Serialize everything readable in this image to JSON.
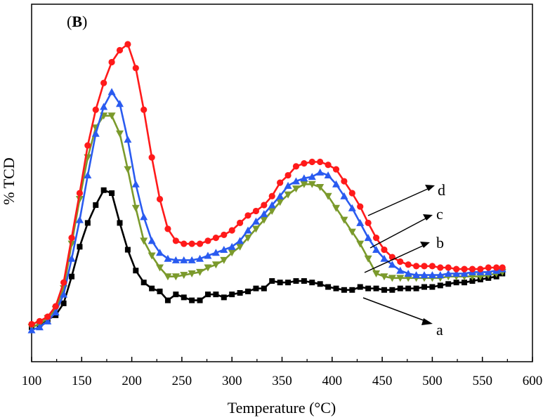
{
  "panel_label": {
    "open": "(",
    "letter": "B",
    "close": ")"
  },
  "chart_data": {
    "type": "line",
    "title": "",
    "xlabel": "Temperature (°C)",
    "ylabel": "% TCD",
    "xlim": [
      100,
      600
    ],
    "ylim": [
      0,
      100
    ],
    "x_ticks": [
      "100",
      "150",
      "200",
      "250",
      "300",
      "350",
      "400",
      "450",
      "500",
      "550",
      "600"
    ],
    "y_ticks": [],
    "legend": "none (curves labeled a-d with arrows)",
    "series": [
      {
        "name": "a",
        "color": "#000000",
        "marker": "square",
        "x": [
          100,
          108,
          116,
          124,
          132,
          140,
          148,
          156,
          164,
          172,
          180,
          188,
          196,
          204,
          212,
          220,
          228,
          236,
          244,
          252,
          260,
          268,
          276,
          284,
          292,
          300,
          308,
          316,
          324,
          332,
          340,
          348,
          356,
          364,
          372,
          380,
          388,
          396,
          404,
          412,
          420,
          428,
          436,
          444,
          452,
          460,
          468,
          476,
          484,
          492,
          500,
          508,
          516,
          524,
          532,
          540,
          548,
          556,
          564,
          570
        ],
        "y": [
          5,
          6,
          7.5,
          9,
          13,
          22,
          32,
          40,
          46,
          51,
          50,
          40,
          31,
          24,
          20,
          18,
          17,
          14,
          16,
          15,
          14,
          14,
          16,
          16,
          15,
          16,
          16.5,
          17,
          18,
          18,
          20.5,
          20,
          20,
          20.5,
          20.5,
          20,
          19.5,
          18.5,
          18,
          17.5,
          17.5,
          18.5,
          18,
          18,
          17.5,
          17.5,
          18,
          18,
          18,
          18.5,
          18.5,
          19,
          19.5,
          20,
          20,
          20.5,
          21,
          21.5,
          22,
          23
        ]
      },
      {
        "name": "b",
        "color": "#7b9a2c",
        "marker": "triangle-down",
        "x": [
          100,
          108,
          116,
          124,
          132,
          140,
          148,
          156,
          164,
          172,
          180,
          188,
          196,
          204,
          212,
          220,
          228,
          236,
          244,
          252,
          260,
          268,
          276,
          284,
          292,
          300,
          308,
          316,
          324,
          332,
          340,
          348,
          356,
          364,
          372,
          380,
          388,
          396,
          404,
          412,
          420,
          428,
          436,
          444,
          452,
          460,
          468,
          476,
          484,
          492,
          500,
          508,
          516,
          524,
          532,
          540,
          548,
          556,
          564,
          570
        ],
        "y": [
          5,
          6,
          8,
          11,
          18,
          33,
          48,
          62,
          72,
          76,
          76,
          70,
          58,
          45,
          34,
          29,
          25,
          22,
          22,
          22.5,
          23,
          23.5,
          25,
          26,
          27.5,
          30,
          32,
          35,
          38,
          41,
          44,
          47,
          49.5,
          51.5,
          53,
          53,
          52,
          49,
          45,
          41,
          37,
          33,
          28,
          23,
          22,
          21.5,
          21.5,
          21.5,
          21.5,
          21.5,
          21.5,
          21.5,
          22,
          22,
          22,
          22,
          22,
          22.5,
          23,
          23.5
        ]
      },
      {
        "name": "c",
        "color": "#2a5bf0",
        "marker": "triangle-up",
        "x": [
          100,
          108,
          116,
          124,
          132,
          140,
          148,
          156,
          164,
          172,
          180,
          188,
          196,
          204,
          212,
          220,
          228,
          236,
          244,
          252,
          260,
          268,
          276,
          284,
          292,
          300,
          308,
          316,
          324,
          332,
          340,
          348,
          356,
          364,
          372,
          380,
          388,
          396,
          404,
          412,
          420,
          428,
          436,
          444,
          452,
          460,
          468,
          476,
          484,
          492,
          500,
          508,
          516,
          524,
          532,
          540,
          548,
          556,
          564,
          570
        ],
        "y": [
          4,
          5,
          7,
          10,
          16,
          28,
          41,
          56,
          70,
          79,
          84,
          80,
          68,
          53,
          42,
          34,
          30,
          28,
          27.5,
          27.5,
          27.5,
          28,
          29,
          30,
          31,
          32,
          34,
          37.5,
          40.5,
          43,
          46,
          49,
          52.5,
          54,
          55,
          55.5,
          57,
          56,
          53,
          49,
          45,
          40,
          35,
          31,
          28,
          26,
          24,
          23,
          22.5,
          22.5,
          22.5,
          22.5,
          23,
          23,
          23,
          23.5,
          23.5,
          23.5,
          24,
          24.5
        ]
      },
      {
        "name": "d",
        "color": "#ff1a1a",
        "marker": "circle",
        "x": [
          100,
          108,
          116,
          124,
          132,
          140,
          148,
          156,
          164,
          172,
          180,
          188,
          196,
          204,
          212,
          220,
          228,
          236,
          244,
          252,
          260,
          268,
          276,
          284,
          292,
          300,
          308,
          316,
          324,
          332,
          340,
          348,
          356,
          364,
          372,
          380,
          388,
          396,
          404,
          412,
          420,
          428,
          436,
          444,
          452,
          460,
          468,
          476,
          484,
          492,
          500,
          508,
          516,
          524,
          532,
          540,
          548,
          556,
          564,
          570
        ],
        "y": [
          6,
          7,
          8.5,
          12,
          20,
          35,
          50,
          66,
          78,
          87,
          94,
          98,
          100,
          92,
          78,
          62,
          48,
          38,
          34,
          33,
          33,
          33,
          34,
          35,
          36,
          37.5,
          40,
          42.5,
          44,
          46,
          49,
          53.5,
          56,
          59,
          60,
          60.5,
          60.5,
          59.5,
          58,
          54,
          50,
          45.5,
          40,
          35,
          31,
          28.5,
          27,
          26,
          25.5,
          25.5,
          25.5,
          25,
          25,
          24.5,
          24.5,
          24.5,
          24.5,
          25,
          25,
          25
        ]
      }
    ]
  }
}
